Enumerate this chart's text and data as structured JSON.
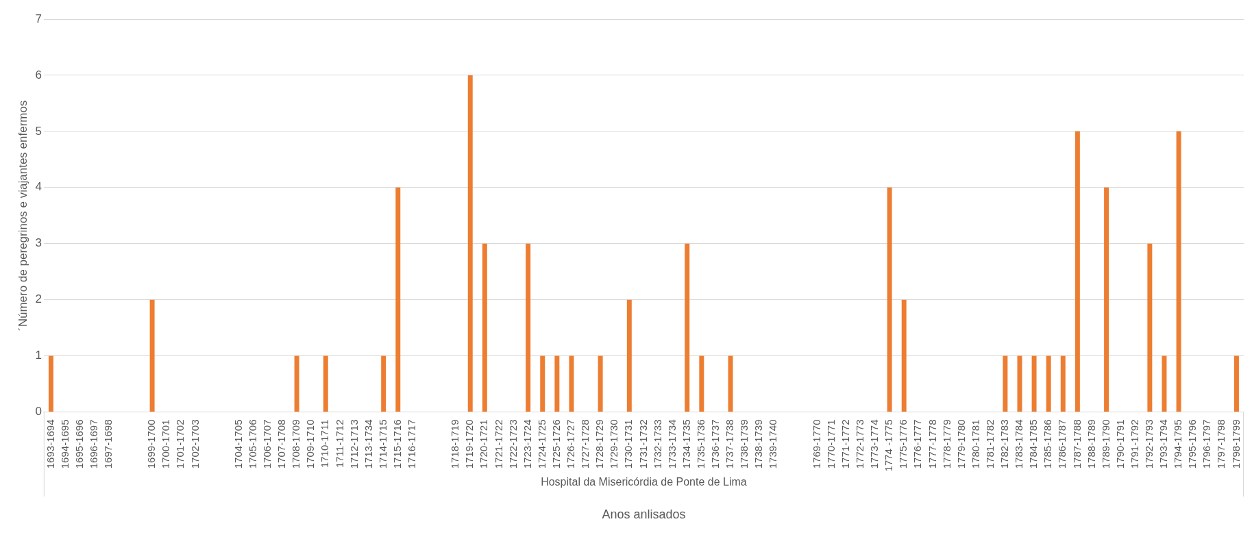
{
  "chart_data": {
    "type": "bar",
    "ylabel": "´Número de peregrinos e viajantes enfermos",
    "xlabel": "Anos anlisados",
    "annotations": [
      "Hospital da Misericórdia de Ponte de Lima"
    ],
    "categories": [
      "1693-1694",
      "1694-1695",
      "1695-1696",
      "1696-1697",
      "1697-1698",
      null,
      null,
      "1699-1700",
      "1700-1701",
      "1701-1702",
      "1702-1703",
      null,
      null,
      "1704-1705",
      "1705-1706",
      "1706-1707",
      "1707-1708",
      "1708-1709",
      "1709-1710",
      "1710-1711",
      "1711-1712",
      "1712-1713",
      "1713-1734",
      "1714-1715",
      "1715-1716",
      "1716-1717",
      null,
      null,
      "1718-1719",
      "1719-1720",
      "1720-1721",
      "1721-1722",
      "1722-1723",
      "1723-1724",
      "1724-1725",
      "1725-1726",
      "1726-1727",
      "1727-1728",
      "1728-1729",
      "1729-1730",
      "1730-1731",
      "1731-1732",
      "1732-1733",
      "1733-1734",
      "1734-1735",
      "1735-1736",
      "1736-1737",
      "1737-1738",
      "1738-1739",
      "1738-1739",
      "1739-1740",
      null,
      null,
      "1769-1770",
      "1770-1771",
      "1771-1772",
      "1772-1773",
      "1773-1774",
      "1774 -1775",
      "1775-1776",
      "1776-1777",
      "1777-1778",
      "1778-1779",
      "1779-1780",
      "1780-1781",
      "1781-1782",
      "1782-1783",
      "1783-1784",
      "1784-1785",
      "1785-1786",
      "1786-1787",
      "1787-1788",
      "1788-1789",
      "1789-1790",
      "1790-1791",
      "1791-1792",
      "1792-1793",
      "1793-1794",
      "1794-1795",
      "1795-1796",
      "1796-1797",
      "1797-1798",
      "1798-1799"
    ],
    "values": [
      1,
      0,
      0,
      0,
      0,
      null,
      null,
      2,
      0,
      0,
      0,
      null,
      null,
      0,
      0,
      0,
      0,
      1,
      0,
      1,
      0,
      0,
      0,
      1,
      4,
      0,
      null,
      null,
      0,
      6,
      3,
      0,
      0,
      3,
      1,
      1,
      1,
      0,
      1,
      0,
      2,
      0,
      0,
      0,
      3,
      1,
      0,
      1,
      0,
      0,
      0,
      null,
      null,
      0,
      0,
      0,
      0,
      0,
      4,
      2,
      0,
      0,
      0,
      0,
      0,
      0,
      1,
      1,
      1,
      1,
      1,
      5,
      0,
      4,
      0,
      0,
      3,
      1,
      5,
      0,
      0,
      0,
      1
    ],
    "color": "#ed7d31",
    "ylim": [
      0,
      7
    ],
    "yticks": [
      0,
      1,
      2,
      3,
      4,
      5,
      6,
      7
    ],
    "grid": "y"
  }
}
